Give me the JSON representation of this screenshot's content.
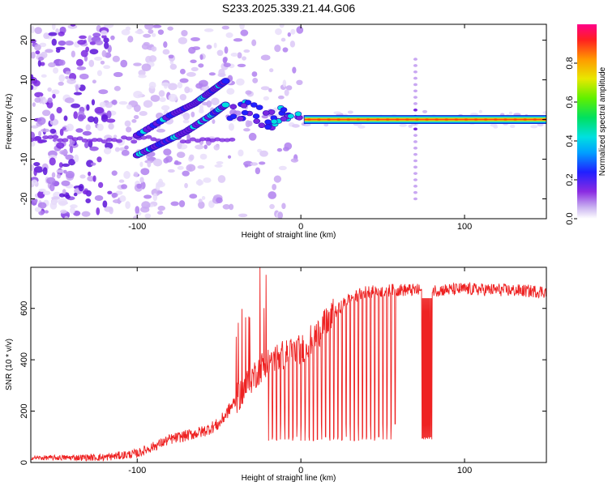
{
  "title": "S233.2025.339.21.44.G06",
  "charts": {
    "spectrogram": {
      "type": "heatmap",
      "xlabel": "Height of straight line (km)",
      "ylabel": "Frequency (Hz)",
      "xlim": [
        -165,
        150
      ],
      "ylim": [
        -25,
        24
      ],
      "xticks": [
        -100,
        0,
        100
      ],
      "yticks": [
        -20,
        -10,
        0,
        10,
        20
      ],
      "colorbar": {
        "label": "Normalized spectral amplitude",
        "range": [
          0,
          1
        ],
        "ticks": [
          "0.0",
          "0.2",
          "0.4",
          "0.6",
          "0.8"
        ],
        "tick_values": [
          0,
          0.2,
          0.4,
          0.6,
          0.8
        ]
      },
      "features": {
        "main_line": {
          "x_start": 2,
          "x_end": 150,
          "freq": 0,
          "amplitude": 0.95
        },
        "noise_band": {
          "x_start": -165,
          "x_end": 0,
          "freq_range": [
            -25,
            24
          ]
        },
        "artifact_column": {
          "x": 70,
          "freq_range": [
            -20,
            16
          ]
        },
        "branch_upper": {
          "x": [
            -100,
            -80,
            -65,
            -55,
            -45
          ],
          "freq": [
            -4,
            1,
            4,
            7,
            10
          ]
        },
        "branch_lower": {
          "x": [
            -100,
            -85,
            -70,
            -55,
            -45
          ],
          "freq": [
            -9,
            -6,
            -3,
            1,
            4
          ]
        }
      }
    },
    "snr": {
      "type": "line",
      "xlabel": "Height of straight line (km)",
      "ylabel": "SNR (10 * v/v)",
      "xlim": [
        -165,
        150
      ],
      "ylim": [
        0,
        760
      ],
      "xticks": [
        -100,
        0,
        100
      ],
      "yticks": [
        0,
        200,
        400,
        600
      ],
      "series_color": "#ee2222",
      "baseline": {
        "x": [
          -165,
          -120,
          -100,
          -80,
          -60,
          -50,
          -40,
          -30,
          -20,
          -10,
          0,
          10,
          20,
          30,
          40,
          60,
          80,
          100,
          120,
          150
        ],
        "y": [
          18,
          20,
          35,
          90,
          120,
          150,
          240,
          330,
          400,
          420,
          440,
          500,
          580,
          640,
          665,
          672,
          670,
          675,
          672,
          665
        ]
      },
      "dips": {
        "x_start": -20,
        "x_end": 60,
        "spacing": 2.5,
        "min_values": [
          150,
          100,
          90,
          85
        ]
      },
      "dip_block": {
        "x_start": 74,
        "x_end": 80,
        "value": 90
      },
      "spikes": {
        "x": -25,
        "value": 760
      }
    }
  }
}
